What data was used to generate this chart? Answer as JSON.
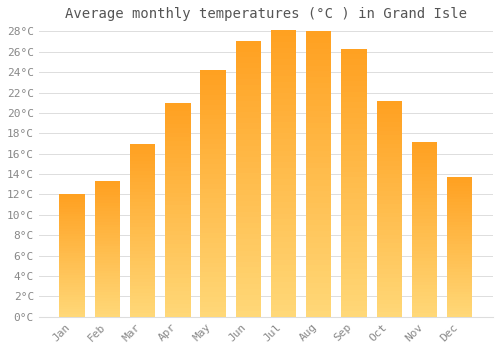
{
  "title": "Average monthly temperatures (°C ) in Grand Isle",
  "months": [
    "Jan",
    "Feb",
    "Mar",
    "Apr",
    "May",
    "Jun",
    "Jul",
    "Aug",
    "Sep",
    "Oct",
    "Nov",
    "Dec"
  ],
  "temperatures": [
    12,
    13.3,
    17,
    21,
    24.2,
    27.1,
    28.1,
    28,
    26.3,
    21.2,
    17.1,
    13.7
  ],
  "bar_color_top": "#FFA500",
  "bar_color_bottom": "#FFD070",
  "background_color": "#FFFFFF",
  "grid_color": "#DDDDDD",
  "text_color": "#888888",
  "title_color": "#555555",
  "ylim": [
    0,
    28
  ],
  "ytick_max": 28,
  "ytick_step": 2,
  "title_fontsize": 10,
  "tick_fontsize": 8,
  "font_family": "monospace"
}
